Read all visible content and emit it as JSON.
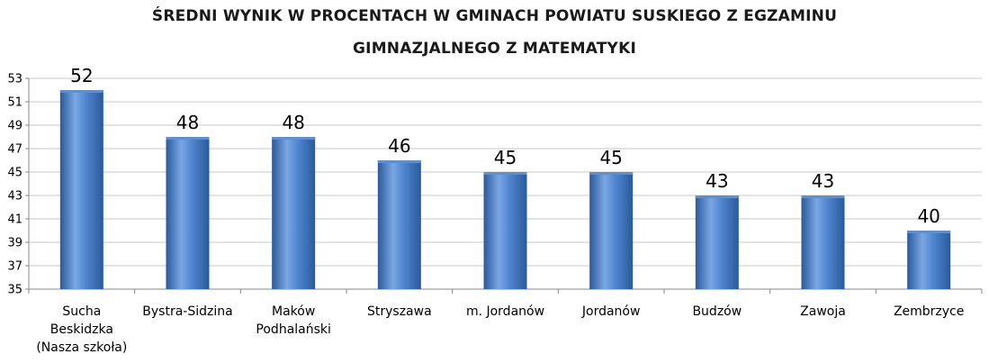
{
  "chart_data": {
    "type": "bar",
    "title_lines": [
      "ŚREDNI WYNIK W PROCENTACH W GMINACH POWIATU SUSKIEGO Z EGZAMINU",
      "GIMNAZJALNEGO Z MATEMATYKI"
    ],
    "categories": [
      [
        "Sucha",
        "Beskidzka",
        "(Nasza szkoła)"
      ],
      [
        "Bystra-Sidzina"
      ],
      [
        "Maków",
        "Podhalański"
      ],
      [
        "Stryszawa"
      ],
      [
        "m. Jordanów"
      ],
      [
        "Jordanów"
      ],
      [
        "Budzów"
      ],
      [
        "Zawoja"
      ],
      [
        "Zembrzyce"
      ]
    ],
    "values": [
      52,
      48,
      48,
      46,
      45,
      45,
      43,
      43,
      40
    ],
    "data_labels": [
      "52",
      "48",
      "48",
      "46",
      "45",
      "45",
      "43",
      "43",
      "40"
    ],
    "ylim": [
      35,
      53
    ],
    "yticks": [
      35,
      37,
      39,
      41,
      43,
      45,
      47,
      49,
      51,
      53
    ],
    "xlabel": "",
    "ylabel": "",
    "grid": true,
    "legend": "none",
    "colors": {
      "bar_dark": "#2a5a9c",
      "bar_mid": "#4f85cf",
      "bar_light": "#7aa7e3",
      "bar_top": "#5b8fd6",
      "grid": "#c8c8c8",
      "axis": "#888888",
      "text": "#000000"
    }
  }
}
